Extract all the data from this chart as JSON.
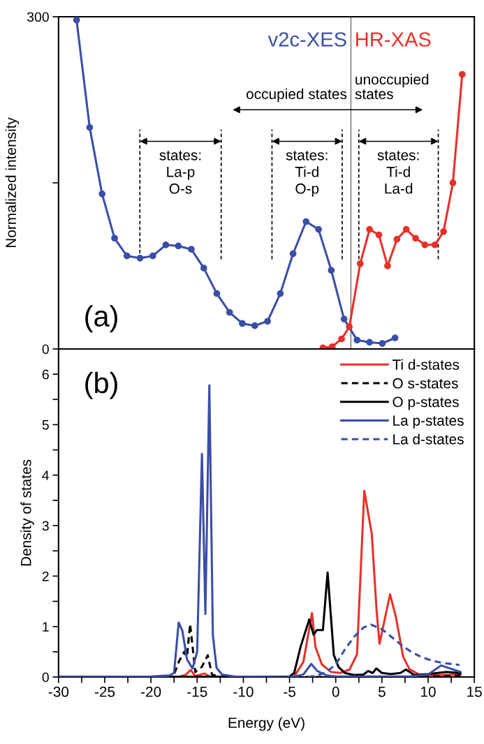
{
  "chart_data": [
    {
      "type": "line",
      "ylabel": "Normalized intensity",
      "xlim": [
        -30,
        15
      ],
      "ylim": [
        0,
        300
      ],
      "yticks": [
        0,
        {
          "value": 150,
          "label": null
        },
        300
      ],
      "tick_labels": "y",
      "marker": "circle",
      "legend": false,
      "series": [
        {
          "name": "v2c-XES",
          "color": "#3a4ea6",
          "x": [
            -28.05,
            -26.63,
            -25.29,
            -23.94,
            -22.6,
            -21.18,
            -19.8,
            -18.39,
            -17.04,
            -15.63,
            -14.28,
            -12.87,
            -11.49,
            -10.11,
            -8.76,
            -7.38,
            -6.0,
            -4.62,
            -3.21,
            -1.86,
            -0.48,
            0.9,
            2.31,
            3.66,
            5.04,
            6.42
          ],
          "values": [
            297,
            200,
            140,
            100,
            84,
            82,
            84,
            94,
            93,
            90,
            73,
            50,
            33,
            23,
            21,
            25,
            50,
            86,
            115,
            108,
            71,
            27,
            8,
            6,
            5,
            10
          ]
        },
        {
          "name": "HR-XAS",
          "color": "#e8302a",
          "x": [
            -1.39,
            -0.38,
            0.63,
            1.47,
            2.65,
            3.66,
            4.67,
            5.61,
            6.62,
            7.63,
            8.64,
            9.65,
            10.73,
            11.67,
            12.68,
            13.69
          ],
          "values": [
            1,
            2,
            9,
            20,
            77,
            108,
            103,
            75,
            99,
            108,
            100,
            94,
            94,
            106,
            150,
            248
          ]
        }
      ],
      "ref_lines": [
        {
          "axis": "x",
          "value": 1.64,
          "color": "#808080"
        },
        {
          "axis": "x",
          "value": -21.2,
          "color": "#000000",
          "line_style": "dashed"
        },
        {
          "axis": "x",
          "value": -12.4,
          "color": "#000000",
          "line_style": "dashed"
        },
        {
          "axis": "x",
          "value": -6.9,
          "color": "#000000",
          "line_style": "dashed"
        },
        {
          "axis": "x",
          "value": 0.7,
          "color": "#000000",
          "line_style": "dashed"
        },
        {
          "axis": "x",
          "value": 2.5,
          "color": "#000000",
          "line_style": "dashed"
        },
        {
          "axis": "x",
          "value": 11.1,
          "color": "#000000",
          "line_style": "dashed"
        }
      ],
      "annotations": [
        "(a)",
        "states:\nLa-p\nO-s",
        "states:\nTi-d\nO-p",
        "states:\nTi-d\nLa-d",
        "occupied states",
        "unoccupied\nstates"
      ]
    },
    {
      "type": "line",
      "xlabel": "Energy (eV)",
      "ylabel": "Density of states",
      "xlim": [
        -30,
        15
      ],
      "ylim": [
        0,
        6.5
      ],
      "xticks": [
        -30,
        {
          "value": -27.5,
          "label": null
        },
        -25,
        {
          "value": -22.5,
          "label": null
        },
        -20,
        {
          "value": -17.5,
          "label": null
        },
        -15,
        {
          "value": -12.5,
          "label": null
        },
        -10,
        {
          "value": -7.5,
          "label": null
        },
        -5,
        {
          "value": -2.5,
          "label": null
        },
        0,
        {
          "value": 2.5,
          "label": null
        },
        5,
        {
          "value": 7.5,
          "label": null
        },
        10,
        {
          "value": 12.5,
          "label": null
        },
        15
      ],
      "yticks": [
        0,
        {
          "value": 0.5,
          "label": null
        },
        1,
        {
          "value": 1.5,
          "label": null
        },
        2,
        {
          "value": 2.5,
          "label": null
        },
        3,
        {
          "value": 3.5,
          "label": null
        },
        4,
        {
          "value": 4.5,
          "label": null
        },
        5,
        {
          "value": 5.5,
          "label": null
        },
        6
      ],
      "legend": "top right",
      "marker": "none",
      "series": [
        {
          "name": "Ti d-states",
          "color": "#e8302a",
          "line_style": "solid",
          "x": [
            -30,
            -17,
            -16.2,
            -15.7,
            -15.2,
            -14.2,
            -13.5,
            -5,
            -4.5,
            -3.5,
            -2.57,
            -2.2,
            -1.5,
            -0.5,
            0.5,
            1.5,
            2.3,
            3.09,
            3.9,
            4.43,
            4.74,
            5.88,
            6.5,
            7.3,
            8,
            9,
            10,
            13.5
          ],
          "values": [
            0,
            0,
            0.05,
            0.14,
            0.02,
            0.07,
            0,
            0,
            0.01,
            0.3,
            1.27,
            0.6,
            0.25,
            0.1,
            0.08,
            0.15,
            0.45,
            3.69,
            2.84,
            1.3,
            0.66,
            1.64,
            1.2,
            0.4,
            0.15,
            0.05,
            0.03,
            0.05
          ]
        },
        {
          "name": "O s-states",
          "color": "#000000",
          "line_style": "dashed",
          "x": [
            -30,
            -18,
            -17.5,
            -17,
            -16.4,
            -16.1,
            -15.76,
            -15.2,
            -14.5,
            -13.85,
            -13.4,
            -12.5,
            9,
            13.5
          ],
          "values": [
            0,
            0,
            0.05,
            0.3,
            0.5,
            0.4,
            1.05,
            0.1,
            0.2,
            0.43,
            0.05,
            0,
            0,
            0.03
          ]
        },
        {
          "name": "O p-states",
          "color": "#000000",
          "line_style": "solid",
          "x": [
            -30,
            -5,
            -4.5,
            -3.8,
            -2.87,
            -2.4,
            -2.06,
            -1.39,
            -0.88,
            -0.21,
            0.3,
            1,
            2,
            3,
            3.5,
            4,
            4.4,
            5,
            6,
            7,
            7.6,
            8.5,
            10,
            12,
            13.5
          ],
          "values": [
            0,
            0.01,
            0.08,
            0.6,
            1.14,
            0.84,
            0.93,
            0.93,
            2.07,
            0.44,
            0.2,
            0.08,
            0.04,
            0.05,
            0.12,
            0.08,
            0.17,
            0.08,
            0.06,
            0.08,
            0.15,
            0.04,
            0.06,
            0.1,
            0.08
          ]
        },
        {
          "name": "La p-states",
          "color": "#3a4ea6",
          "line_style": "solid",
          "x": [
            -30,
            -20,
            -18,
            -17.5,
            -17.0,
            -16.6,
            -16.1,
            -15.5,
            -15.0,
            -14.48,
            -14.11,
            -13.68,
            -13.3,
            -12.9,
            -12.3,
            -11,
            -5.5,
            -4.5,
            -3.5,
            -2.65,
            -2.0,
            -1,
            0,
            8,
            10,
            11.4,
            13.5
          ],
          "values": [
            0,
            0.01,
            0.03,
            0.08,
            1.08,
            0.92,
            0.35,
            0.17,
            0.5,
            4.42,
            1.25,
            5.78,
            0.83,
            0.18,
            0.05,
            0.01,
            0,
            0.01,
            0.05,
            0.26,
            0.12,
            0.03,
            0.01,
            0.01,
            0.05,
            0.23,
            0.1
          ]
        },
        {
          "name": "La d-states",
          "color": "#3a4ea6",
          "line_style": "dashed",
          "x": [
            -3,
            -2,
            -1,
            0,
            1,
            2,
            3,
            3.8,
            5,
            6,
            7,
            8,
            9,
            10,
            11,
            12,
            13.4
          ],
          "values": [
            0,
            0.03,
            0.1,
            0.25,
            0.55,
            0.8,
            0.98,
            1.04,
            0.95,
            0.8,
            0.65,
            0.52,
            0.42,
            0.35,
            0.3,
            0.27,
            0.24
          ]
        }
      ],
      "annotations": [
        "(b)"
      ]
    }
  ]
}
